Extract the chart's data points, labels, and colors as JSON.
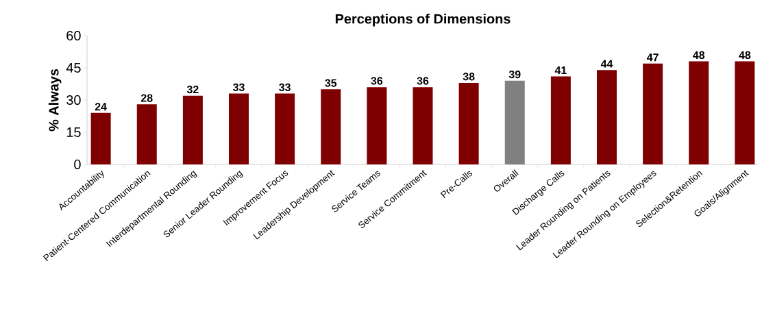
{
  "chart_data": {
    "type": "bar",
    "title": "Perceptions of Dimensions",
    "ylabel": "% Always",
    "categories": [
      "Accountability",
      "Patient-Centered Communication",
      "Interdepartmental Rounding",
      "Senior Leader Rounding",
      "Improvement Focus",
      "Leadership Development",
      "Service Teams",
      "Service Commitment",
      "Pre-Calls",
      "Overall",
      "Discharge Calls",
      "Leader Rounding on Patients",
      "Leader Rounding on Employees",
      "Selection&Retention",
      "Goals/Alignment"
    ],
    "values": [
      24,
      28,
      32,
      33,
      33,
      35,
      36,
      36,
      38,
      39,
      41,
      44,
      47,
      48,
      48
    ],
    "colors": [
      "#7f0000",
      "#7f0000",
      "#7f0000",
      "#7f0000",
      "#7f0000",
      "#7f0000",
      "#7f0000",
      "#7f0000",
      "#7f0000",
      "#808080",
      "#7f0000",
      "#7f0000",
      "#7f0000",
      "#7f0000",
      "#7f0000"
    ],
    "ylim": [
      0,
      60
    ],
    "yticks": [
      0,
      15,
      30,
      45,
      60
    ],
    "data_labels": true,
    "grid": false
  }
}
